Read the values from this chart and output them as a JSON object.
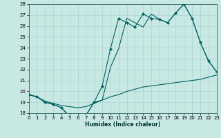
{
  "xlabel": "Humidex (Indice chaleur)",
  "bg_color": "#c8e8e4",
  "grid_color": "#aad4d0",
  "line_color": "#006060",
  "xlim": [
    0,
    23
  ],
  "ylim": [
    18,
    28
  ],
  "xticks": [
    0,
    1,
    2,
    3,
    4,
    5,
    6,
    7,
    8,
    9,
    10,
    11,
    12,
    13,
    14,
    15,
    16,
    17,
    18,
    19,
    20,
    21,
    22,
    23
  ],
  "yticks": [
    18,
    19,
    20,
    21,
    22,
    23,
    24,
    25,
    26,
    27,
    28
  ],
  "line_jagged_markers": {
    "x": [
      0,
      1,
      2,
      3,
      4,
      5,
      6,
      7,
      8,
      9,
      10,
      11,
      12,
      13,
      14,
      15,
      16,
      17,
      18,
      19,
      20,
      21,
      22,
      23
    ],
    "y": [
      19.7,
      19.5,
      19.0,
      18.8,
      18.5,
      17.7,
      17.8,
      17.8,
      19.0,
      20.5,
      23.9,
      26.7,
      26.3,
      25.9,
      27.1,
      26.7,
      26.6,
      26.3,
      27.2,
      28.0,
      26.7,
      24.5,
      22.8,
      21.8
    ]
  },
  "line_upper_nomarker": {
    "x": [
      0,
      1,
      2,
      3,
      4,
      5,
      6,
      7,
      8,
      9,
      10,
      11,
      12,
      13,
      14,
      15,
      16,
      17,
      18,
      19,
      20,
      21,
      22,
      23
    ],
    "y": [
      19.7,
      19.5,
      19.0,
      18.8,
      18.5,
      17.7,
      17.8,
      17.8,
      19.0,
      19.2,
      22.2,
      23.9,
      26.7,
      26.3,
      25.9,
      27.1,
      26.6,
      26.3,
      27.2,
      28.0,
      26.7,
      24.5,
      22.8,
      21.8
    ]
  },
  "line_lower_smooth": {
    "x": [
      0,
      1,
      2,
      3,
      4,
      5,
      6,
      7,
      8,
      9,
      10,
      11,
      12,
      13,
      14,
      15,
      16,
      17,
      18,
      19,
      20,
      21,
      22,
      23
    ],
    "y": [
      19.7,
      19.5,
      19.1,
      18.9,
      18.7,
      18.6,
      18.5,
      18.6,
      18.9,
      19.2,
      19.5,
      19.7,
      20.0,
      20.2,
      20.4,
      20.5,
      20.6,
      20.7,
      20.8,
      20.9,
      21.0,
      21.1,
      21.3,
      21.5
    ]
  }
}
